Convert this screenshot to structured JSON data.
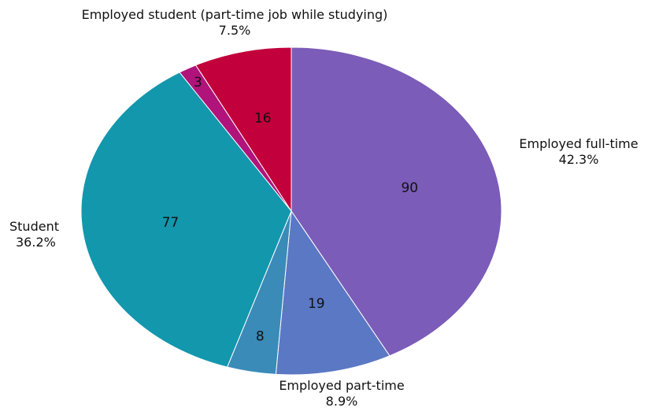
{
  "chart_data": {
    "type": "pie",
    "title": "",
    "slices": [
      {
        "label": "Employed full-time",
        "value": 90,
        "percent_label": "42.3%",
        "color": "#7b5cb8",
        "show_label": true
      },
      {
        "label": "Employed part-time",
        "value": 19,
        "percent_label": "8.9%",
        "color": "#5b78c4",
        "show_label": true
      },
      {
        "label": "",
        "value": 8,
        "percent_label": "",
        "color": "#3a8bb8",
        "show_label": false
      },
      {
        "label": "Student",
        "value": 77,
        "percent_label": "36.2%",
        "color": "#1397ad",
        "show_label": true
      },
      {
        "label": "",
        "value": 3,
        "percent_label": "",
        "color": "#b0137a",
        "show_label": false
      },
      {
        "label": "Employed student (part-time job while studying)",
        "value": 16,
        "percent_label": "7.5%",
        "color": "#c2003b",
        "show_label": true
      }
    ]
  }
}
